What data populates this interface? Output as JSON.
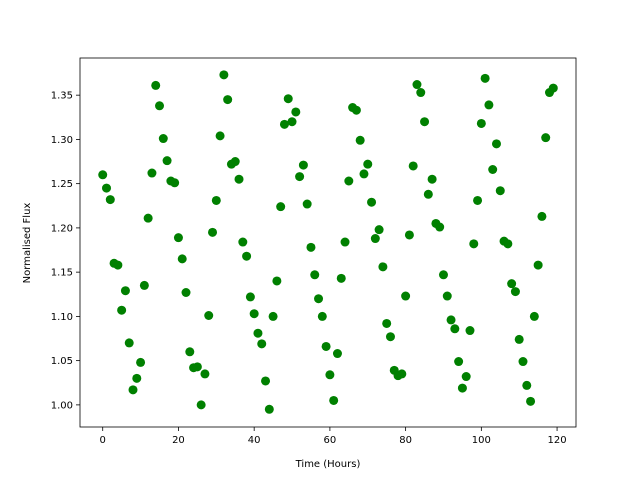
{
  "chart_data": {
    "type": "scatter",
    "x_label": "Time (Hours)",
    "y_label": "Normalised Flux",
    "color": "#008000",
    "xlim": [
      -6,
      125
    ],
    "ylim": [
      0.975,
      1.392
    ],
    "xticks": [
      0,
      20,
      40,
      60,
      80,
      100,
      120
    ],
    "yticks": [
      {
        "value": 1.0,
        "label": "1.00"
      },
      1.05,
      {
        "value": 1.1,
        "label": "1.10"
      },
      1.15,
      {
        "value": 1.2,
        "label": "1.20"
      },
      1.25,
      {
        "value": 1.3,
        "label": "1.30"
      },
      1.35
    ],
    "x": [
      0,
      1,
      2,
      3,
      4,
      5,
      6,
      7,
      8,
      9,
      10,
      11,
      12,
      13,
      14,
      15,
      16,
      17,
      18,
      19,
      20,
      21,
      22,
      23,
      24,
      25,
      26,
      27,
      28,
      29,
      30,
      31,
      32,
      33,
      34,
      35,
      36,
      37,
      38,
      39,
      40,
      41,
      42,
      43,
      44,
      45,
      46,
      47,
      48,
      49,
      50,
      51,
      52,
      53,
      54,
      55,
      56,
      57,
      58,
      59,
      60,
      61,
      62,
      63,
      64,
      65,
      66,
      67,
      68,
      69,
      70,
      71,
      72,
      73,
      74,
      75,
      76,
      77,
      78,
      79,
      80,
      81,
      82,
      83,
      84,
      85,
      86,
      87,
      88,
      89,
      90,
      91,
      92,
      93,
      94,
      95,
      96,
      97,
      98,
      99,
      100,
      101,
      102,
      103,
      104,
      105,
      106,
      107,
      108,
      109,
      110,
      111,
      112,
      113,
      114,
      115,
      116,
      117,
      118,
      119
    ],
    "values": [
      1.26,
      1.245,
      1.232,
      1.16,
      1.158,
      1.107,
      1.129,
      1.07,
      1.017,
      1.03,
      1.048,
      1.135,
      1.211,
      1.262,
      1.361,
      1.338,
      1.301,
      1.276,
      1.253,
      1.251,
      1.189,
      1.165,
      1.127,
      1.06,
      1.042,
      1.043,
      1.0,
      1.035,
      1.101,
      1.195,
      1.231,
      1.304,
      1.373,
      1.345,
      1.272,
      1.275,
      1.255,
      1.184,
      1.168,
      1.122,
      1.103,
      1.081,
      1.069,
      1.027,
      0.995,
      1.1,
      1.14,
      1.224,
      1.317,
      1.346,
      1.32,
      1.331,
      1.258,
      1.271,
      1.227,
      1.178,
      1.147,
      1.12,
      1.1,
      1.066,
      1.034,
      1.005,
      1.058,
      1.143,
      1.184,
      1.253,
      1.336,
      1.333,
      1.299,
      1.261,
      1.272,
      1.229,
      1.188,
      1.198,
      1.156,
      1.092,
      1.077,
      1.039,
      1.033,
      1.035,
      1.123,
      1.192,
      1.27,
      1.362,
      1.353,
      1.32,
      1.238,
      1.255,
      1.205,
      1.201,
      1.147,
      1.123,
      1.096,
      1.086,
      1.049,
      1.019,
      1.032,
      1.084,
      1.182,
      1.231,
      1.318,
      1.369,
      1.339,
      1.266,
      1.295,
      1.242,
      1.185,
      1.182,
      1.137,
      1.128,
      1.074,
      1.049,
      1.022,
      1.004,
      1.1,
      1.158,
      1.213,
      1.302,
      1.353,
      1.358
    ]
  }
}
